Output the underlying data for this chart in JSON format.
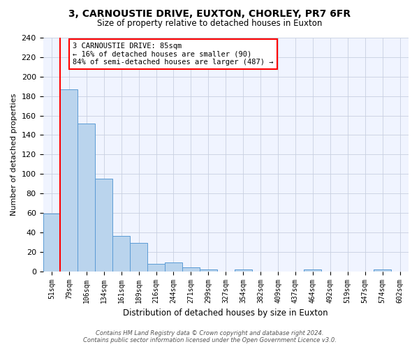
{
  "title": "3, CARNOUSTIE DRIVE, EUXTON, CHORLEY, PR7 6FR",
  "subtitle": "Size of property relative to detached houses in Euxton",
  "xlabel": "Distribution of detached houses by size in Euxton",
  "ylabel": "Number of detached properties",
  "categories": [
    "51sqm",
    "79sqm",
    "106sqm",
    "134sqm",
    "161sqm",
    "189sqm",
    "216sqm",
    "244sqm",
    "271sqm",
    "299sqm",
    "327sqm",
    "354sqm",
    "382sqm",
    "409sqm",
    "437sqm",
    "464sqm",
    "492sqm",
    "519sqm",
    "547sqm",
    "574sqm",
    "602sqm"
  ],
  "values": [
    59,
    187,
    152,
    95,
    36,
    29,
    8,
    9,
    4,
    2,
    0,
    2,
    0,
    0,
    0,
    2,
    0,
    0,
    0,
    2,
    0
  ],
  "bar_color": "#bad4ed",
  "bar_edge_color": "#5b9bd5",
  "vline_color": "red",
  "vline_x_index": 1,
  "annotation_text": "3 CARNOUSTIE DRIVE: 85sqm\n← 16% of detached houses are smaller (90)\n84% of semi-detached houses are larger (487) →",
  "annotation_box_color": "white",
  "annotation_box_edge_color": "red",
  "ylim": [
    0,
    240
  ],
  "yticks": [
    0,
    20,
    40,
    60,
    80,
    100,
    120,
    140,
    160,
    180,
    200,
    220,
    240
  ],
  "footer_line1": "Contains HM Land Registry data © Crown copyright and database right 2024.",
  "footer_line2": "Contains public sector information licensed under the Open Government Licence v3.0.",
  "bg_color": "#f0f4ff",
  "grid_color": "#c8d0e0"
}
